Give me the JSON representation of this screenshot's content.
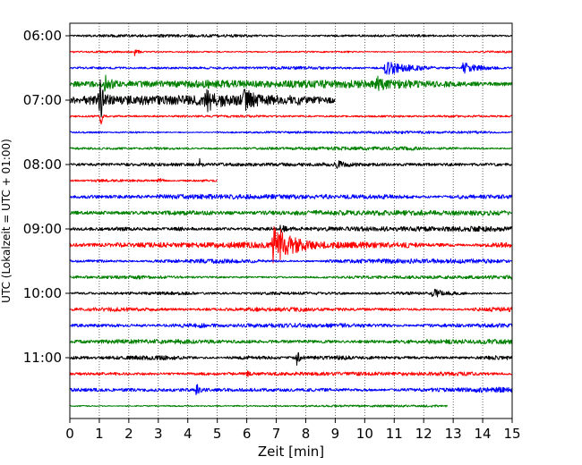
{
  "chart_data": {
    "type": "line",
    "title": "",
    "xlabel": "Zeit  [min]",
    "ylabel": "UTC (Lokalzeit = UTC + 01:00)",
    "xlim": [
      0,
      15
    ],
    "x_ticks": [
      "0",
      "1",
      "2",
      "3",
      "4",
      "5",
      "6",
      "7",
      "8",
      "9",
      "10",
      "11",
      "12",
      "13",
      "14",
      "15"
    ],
    "y_ticks": [
      "06:00",
      "07:00",
      "08:00",
      "09:00",
      "10:00",
      "11:00"
    ],
    "grid": "vertical-dotted",
    "start_time": "06:00",
    "trace_interval_min": 15,
    "trace_colors": [
      "#000000",
      "#ff0000",
      "#0000ff",
      "#008000"
    ],
    "traces": [
      {
        "time": "06:00",
        "color": "#000000",
        "amplitude": 1.0,
        "events": []
      },
      {
        "time": "06:15",
        "color": "#ff0000",
        "amplitude": 1.0,
        "events": [
          {
            "t": 2.2,
            "amp": 8,
            "dur": 0.15
          }
        ]
      },
      {
        "time": "06:30",
        "color": "#0000ff",
        "amplitude": 1.2,
        "events": [
          {
            "t": 10.7,
            "amp": 8,
            "dur": 1.6
          },
          {
            "t": 13.3,
            "amp": 6,
            "dur": 1.4
          }
        ]
      },
      {
        "time": "06:45",
        "color": "#008000",
        "amplitude": 3.0,
        "events": [
          {
            "t": 1.2,
            "amp": 8,
            "dur": 0.4
          },
          {
            "t": 10.4,
            "amp": 7,
            "dur": 0.4
          }
        ]
      },
      {
        "time": "07:00",
        "color": "#000000",
        "amplitude": 4.0,
        "end_min": 9.0,
        "events": [
          {
            "t": 1.0,
            "amp": 30,
            "dur": 0.2
          },
          {
            "t": 4.6,
            "amp": 10,
            "dur": 0.8
          },
          {
            "t": 5.9,
            "amp": 10,
            "dur": 0.6
          }
        ]
      },
      {
        "time": "07:15",
        "color": "#ff0000",
        "amplitude": 1.0,
        "events": [
          {
            "t": 1.05,
            "amp": 12,
            "dur": 0.1
          }
        ]
      },
      {
        "time": "07:30",
        "color": "#0000ff",
        "amplitude": 1.0,
        "events": []
      },
      {
        "time": "07:45",
        "color": "#008000",
        "amplitude": 1.2,
        "events": []
      },
      {
        "time": "08:00",
        "color": "#000000",
        "amplitude": 1.5,
        "events": [
          {
            "t": 4.4,
            "amp": 6,
            "dur": 0.1
          },
          {
            "t": 9.0,
            "amp": 5,
            "dur": 0.4
          }
        ]
      },
      {
        "time": "08:15",
        "color": "#ff0000",
        "amplitude": 1.0,
        "end_min": 5.0,
        "events": [
          {
            "t": 3.0,
            "amp": 5,
            "dur": 0.2
          }
        ]
      },
      {
        "time": "08:30",
        "color": "#0000ff",
        "amplitude": 1.8,
        "events": []
      },
      {
        "time": "08:45",
        "color": "#008000",
        "amplitude": 1.8,
        "events": []
      },
      {
        "time": "09:00",
        "color": "#000000",
        "amplitude": 1.8,
        "events": [
          {
            "t": 7.1,
            "amp": 5,
            "dur": 0.3
          }
        ]
      },
      {
        "time": "09:15",
        "color": "#ff0000",
        "amplitude": 2.0,
        "events": [
          {
            "t": 6.9,
            "amp": 22,
            "dur": 1.4
          }
        ]
      },
      {
        "time": "09:30",
        "color": "#0000ff",
        "amplitude": 1.5,
        "events": []
      },
      {
        "time": "09:45",
        "color": "#008000",
        "amplitude": 1.5,
        "events": []
      },
      {
        "time": "10:00",
        "color": "#000000",
        "amplitude": 1.2,
        "events": [
          {
            "t": 12.3,
            "amp": 4,
            "dur": 0.8
          }
        ]
      },
      {
        "time": "10:15",
        "color": "#ff0000",
        "amplitude": 1.8,
        "events": []
      },
      {
        "time": "10:30",
        "color": "#0000ff",
        "amplitude": 1.8,
        "events": []
      },
      {
        "time": "10:45",
        "color": "#008000",
        "amplitude": 1.8,
        "events": []
      },
      {
        "time": "11:00",
        "color": "#000000",
        "amplitude": 1.6,
        "events": [
          {
            "t": 7.7,
            "amp": 10,
            "dur": 0.15
          }
        ]
      },
      {
        "time": "11:15",
        "color": "#ff0000",
        "amplitude": 1.4,
        "events": [
          {
            "t": 6.0,
            "amp": 5,
            "dur": 0.1
          }
        ]
      },
      {
        "time": "11:30",
        "color": "#0000ff",
        "amplitude": 1.8,
        "events": [
          {
            "t": 4.3,
            "amp": 7,
            "dur": 0.15
          }
        ]
      },
      {
        "time": "11:45",
        "color": "#008000",
        "amplitude": 0.8,
        "end_min": 12.8,
        "events": []
      }
    ]
  }
}
